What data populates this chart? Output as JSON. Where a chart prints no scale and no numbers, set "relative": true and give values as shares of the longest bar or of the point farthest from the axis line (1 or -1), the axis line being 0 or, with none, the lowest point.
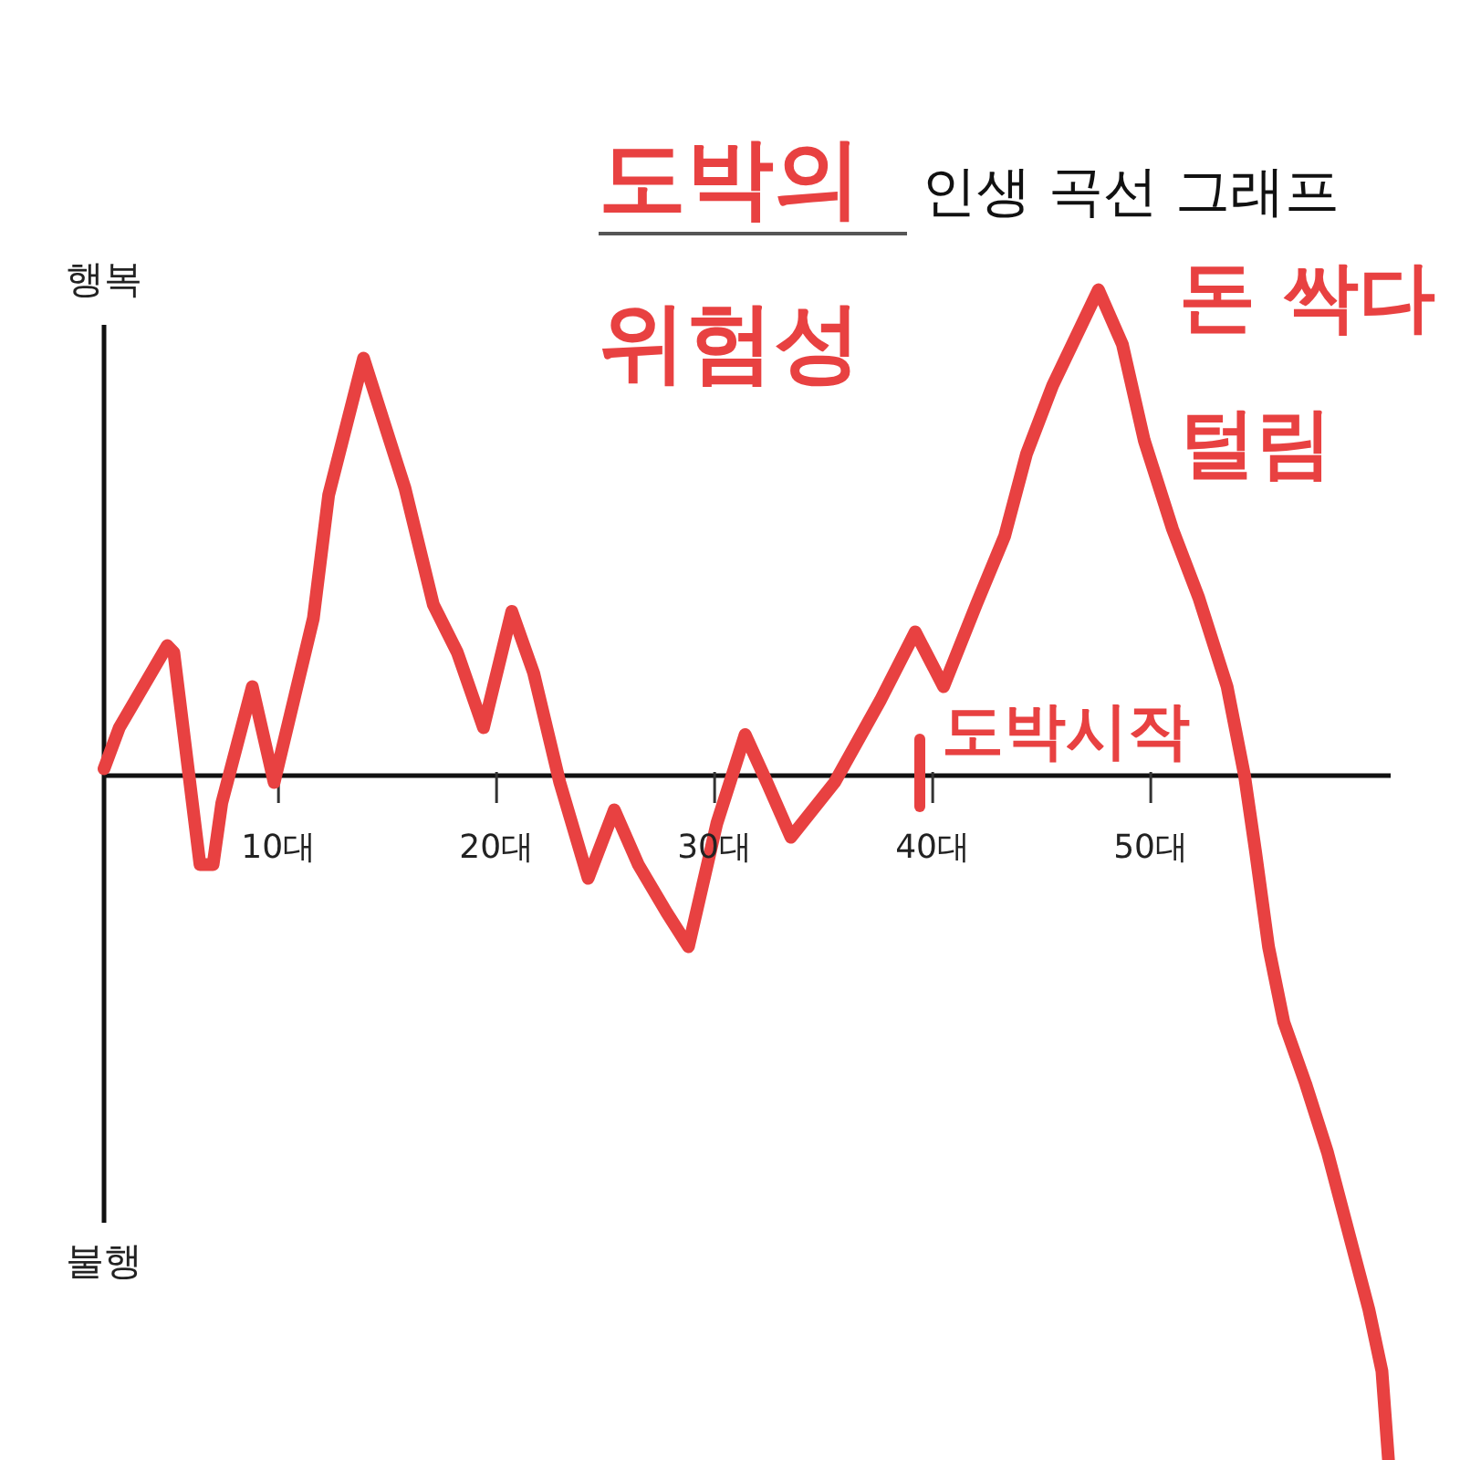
{
  "chart_data": {
    "type": "line",
    "title": "인생 곡선 그래프",
    "x": [
      2,
      2.7,
      4.9,
      5.2,
      6.4,
      7.0,
      7.4,
      8.8,
      9.8,
      11.6,
      12.3,
      13.9,
      15.8,
      17.1,
      18.2,
      19.4,
      20.7,
      21.7,
      22.9,
      24.2,
      25.4,
      26.5,
      27.8,
      28.8,
      30.1,
      31.4,
      32.4,
      33.5,
      35.5,
      37.6,
      39.2,
      40.5,
      42.0,
      43.3,
      44.3,
      45.5,
      47.6,
      48.7,
      49.7,
      51.0,
      52.2,
      53.5,
      54.3,
      54.8,
      55.4,
      56.1,
      57.1,
      58.1,
      60.0,
      60.6,
      60.9
    ],
    "values": [
      0.01,
      0.07,
      0.19,
      0.18,
      -0.13,
      -0.13,
      -0.04,
      0.13,
      -0.01,
      0.23,
      0.41,
      0.61,
      0.42,
      0.25,
      0.18,
      0.07,
      0.24,
      0.15,
      -0.01,
      -0.15,
      -0.05,
      -0.13,
      -0.2,
      -0.25,
      -0.07,
      0.06,
      -0.01,
      -0.09,
      -0.01,
      0.11,
      0.21,
      0.13,
      0.25,
      0.35,
      0.47,
      0.57,
      0.71,
      0.63,
      0.49,
      0.36,
      0.26,
      0.13,
      0,
      -0.11,
      -0.25,
      -0.36,
      -0.45,
      -0.55,
      -0.78,
      -0.87,
      -1
    ],
    "color": "#e84141",
    "relative": true,
    "line_style": "solid",
    "xlim": [
      2,
      61
    ],
    "xticks": [
      {
        "value": 10,
        "label": "10대"
      },
      {
        "value": 20,
        "label": "20대"
      },
      {
        "value": 30,
        "label": "30대"
      },
      {
        "value": 40,
        "label": "40대"
      },
      {
        "value": 50,
        "label": "50대"
      }
    ],
    "annotations": [
      "행복",
      "불행",
      "도박의 위험성",
      "도박시작",
      {
        "text": "돈 싹다 털림",
        "x": 47.6,
        "y": 0.71
      }
    ]
  }
}
